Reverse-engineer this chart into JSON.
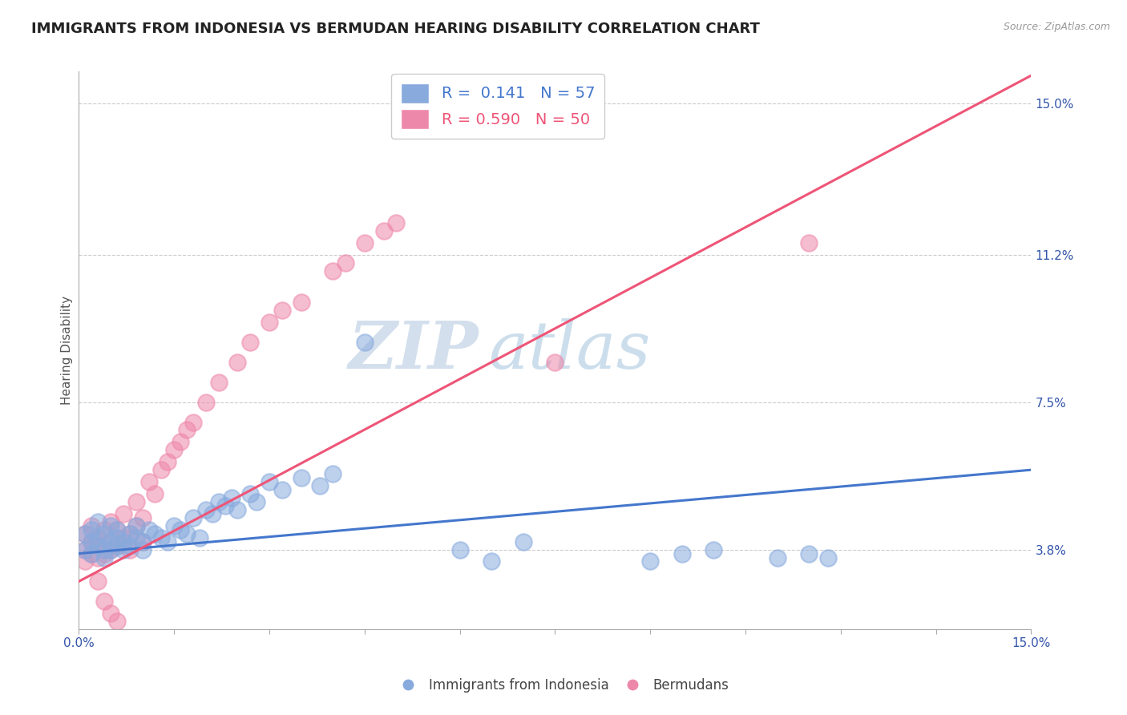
{
  "title": "IMMIGRANTS FROM INDONESIA VS BERMUDAN HEARING DISABILITY CORRELATION CHART",
  "source": "Source: ZipAtlas.com",
  "ylabel": "Hearing Disability",
  "xlim": [
    0.0,
    0.15
  ],
  "ylim": [
    0.018,
    0.158
  ],
  "xticks": [
    0.0,
    0.015,
    0.03,
    0.045,
    0.06,
    0.075,
    0.09,
    0.105,
    0.12,
    0.135,
    0.15
  ],
  "xticklabels": [
    "0.0%",
    "",
    "",
    "",
    "",
    "",
    "",
    "",
    "",
    "",
    "15.0%"
  ],
  "ytick_positions": [
    0.038,
    0.075,
    0.112,
    0.15
  ],
  "ytick_labels": [
    "3.8%",
    "7.5%",
    "11.2%",
    "15.0%"
  ],
  "grid_color": "#cccccc",
  "background_color": "#ffffff",
  "title_fontsize": 13,
  "label_fontsize": 11,
  "tick_fontsize": 11,
  "legend_r1": "R =  0.141   N = 57",
  "legend_r2": "R = 0.590   N = 50",
  "blue_color": "#88aadd",
  "pink_color": "#ee88aa",
  "blue_line_color": "#4477cc",
  "pink_line_color": "#ee5577",
  "watermark_zip": "ZIP",
  "watermark_atlas": "atlas",
  "blue_scatter_x": [
    0.001,
    0.001,
    0.002,
    0.002,
    0.002,
    0.003,
    0.003,
    0.003,
    0.004,
    0.004,
    0.004,
    0.005,
    0.005,
    0.005,
    0.006,
    0.006,
    0.006,
    0.007,
    0.007,
    0.008,
    0.008,
    0.009,
    0.009,
    0.01,
    0.01,
    0.011,
    0.012,
    0.013,
    0.014,
    0.015,
    0.016,
    0.017,
    0.018,
    0.019,
    0.02,
    0.021,
    0.022,
    0.023,
    0.024,
    0.025,
    0.027,
    0.028,
    0.03,
    0.032,
    0.035,
    0.038,
    0.04,
    0.06,
    0.065,
    0.07,
    0.09,
    0.095,
    0.1,
    0.11,
    0.115,
    0.118,
    0.045
  ],
  "blue_scatter_y": [
    0.042,
    0.038,
    0.04,
    0.037,
    0.043,
    0.039,
    0.041,
    0.045,
    0.038,
    0.042,
    0.036,
    0.04,
    0.044,
    0.038,
    0.041,
    0.039,
    0.043,
    0.04,
    0.038,
    0.042,
    0.039,
    0.041,
    0.044,
    0.04,
    0.038,
    0.043,
    0.042,
    0.041,
    0.04,
    0.044,
    0.043,
    0.042,
    0.046,
    0.041,
    0.048,
    0.047,
    0.05,
    0.049,
    0.051,
    0.048,
    0.052,
    0.05,
    0.055,
    0.053,
    0.056,
    0.054,
    0.057,
    0.038,
    0.035,
    0.04,
    0.035,
    0.037,
    0.038,
    0.036,
    0.037,
    0.036,
    0.09
  ],
  "pink_scatter_x": [
    0.001,
    0.001,
    0.001,
    0.002,
    0.002,
    0.002,
    0.003,
    0.003,
    0.003,
    0.004,
    0.004,
    0.005,
    0.005,
    0.005,
    0.006,
    0.006,
    0.007,
    0.007,
    0.008,
    0.008,
    0.009,
    0.009,
    0.01,
    0.01,
    0.011,
    0.012,
    0.013,
    0.014,
    0.015,
    0.016,
    0.017,
    0.018,
    0.02,
    0.022,
    0.025,
    0.027,
    0.03,
    0.032,
    0.035,
    0.04,
    0.042,
    0.045,
    0.048,
    0.05,
    0.003,
    0.004,
    0.005,
    0.006,
    0.075,
    0.115
  ],
  "pink_scatter_y": [
    0.038,
    0.035,
    0.042,
    0.037,
    0.04,
    0.044,
    0.036,
    0.041,
    0.039,
    0.043,
    0.037,
    0.04,
    0.038,
    0.045,
    0.039,
    0.043,
    0.041,
    0.047,
    0.042,
    0.038,
    0.044,
    0.05,
    0.04,
    0.046,
    0.055,
    0.052,
    0.058,
    0.06,
    0.063,
    0.065,
    0.068,
    0.07,
    0.075,
    0.08,
    0.085,
    0.09,
    0.095,
    0.098,
    0.1,
    0.108,
    0.11,
    0.115,
    0.118,
    0.12,
    0.03,
    0.025,
    0.022,
    0.02,
    0.085,
    0.115
  ],
  "blue_regline_x": [
    0.0,
    0.15
  ],
  "blue_regline_y": [
    0.037,
    0.058
  ],
  "pink_regline_x": [
    0.0,
    0.15
  ],
  "pink_regline_y": [
    0.03,
    0.157
  ]
}
